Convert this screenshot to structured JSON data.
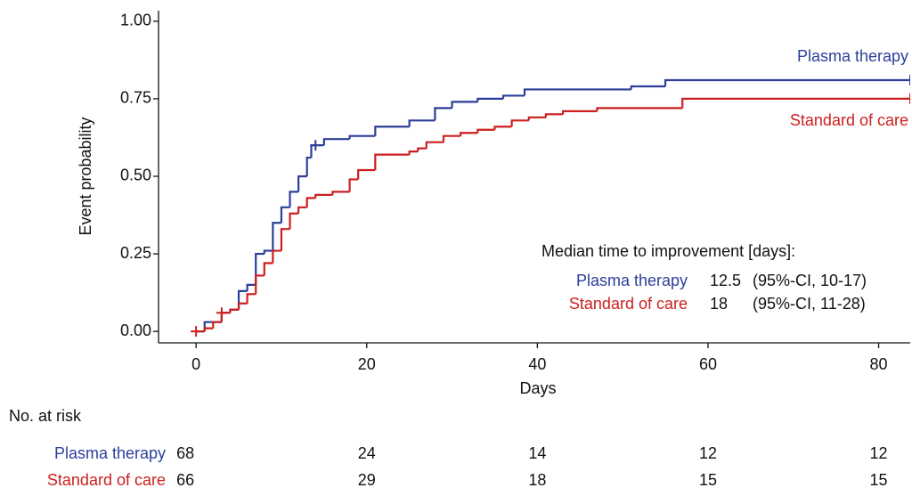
{
  "chart_data": {
    "type": "step",
    "x_label": "Days",
    "y_label": "Event probability",
    "xlim": [
      -4.4,
      83.7
    ],
    "ylim": [
      -0.037,
      1.034
    ],
    "xticks": [
      0,
      20,
      40,
      60,
      80
    ],
    "yticks": [
      {
        "value": 0,
        "label": "0.00"
      },
      {
        "value": 0.25,
        "label": "0.25"
      },
      {
        "value": 0.5,
        "label": "0.50"
      },
      {
        "value": 0.75,
        "label": "0.75"
      },
      {
        "value": 1,
        "label": "1.00"
      }
    ],
    "series": [
      {
        "name": "Plasma therapy",
        "color": "#2b3f9a",
        "x": [
          0,
          1,
          3,
          4,
          5,
          6,
          7,
          8,
          9,
          10,
          11,
          12,
          13,
          13.5,
          15,
          18,
          21,
          25,
          28,
          30,
          33,
          36,
          38.5,
          51,
          55
        ],
        "values": [
          0,
          0.03,
          0.06,
          0.07,
          0.13,
          0.15,
          0.25,
          0.26,
          0.35,
          0.4,
          0.45,
          0.5,
          0.56,
          0.6,
          0.62,
          0.63,
          0.66,
          0.68,
          0.72,
          0.74,
          0.75,
          0.76,
          0.78,
          0.79,
          0.81
        ],
        "censor_x": [
          14,
          83.7
        ],
        "censor_y": [
          0.6,
          0.81
        ],
        "median": 12.5,
        "ci_label": "(95%-CI, 10-17)",
        "at_risk": [
          68,
          24,
          14,
          12,
          12
        ]
      },
      {
        "name": "Standard of care",
        "color": "#cc1f1f",
        "x": [
          0,
          1,
          2,
          3,
          4,
          5,
          6,
          7,
          8,
          9,
          10,
          11,
          12,
          13,
          14,
          16,
          18,
          19,
          21,
          25,
          26,
          27,
          29,
          31,
          33,
          35,
          37,
          39,
          41,
          43,
          47,
          57
        ],
        "values": [
          0,
          0.01,
          0.03,
          0.06,
          0.07,
          0.09,
          0.12,
          0.18,
          0.22,
          0.26,
          0.33,
          0.38,
          0.4,
          0.43,
          0.44,
          0.45,
          0.49,
          0.52,
          0.57,
          0.58,
          0.59,
          0.61,
          0.63,
          0.64,
          0.65,
          0.66,
          0.68,
          0.69,
          0.7,
          0.71,
          0.72,
          0.75
        ],
        "censor_x": [
          0,
          3,
          83.7
        ],
        "censor_y": [
          0,
          0.06,
          0.75
        ],
        "median": 18,
        "ci_label": "(95%-CI, 11-28)",
        "at_risk": [
          66,
          29,
          18,
          15,
          15
        ]
      }
    ],
    "median_title": "Median time to improvement [days]:",
    "risk_title": "No. at risk"
  }
}
